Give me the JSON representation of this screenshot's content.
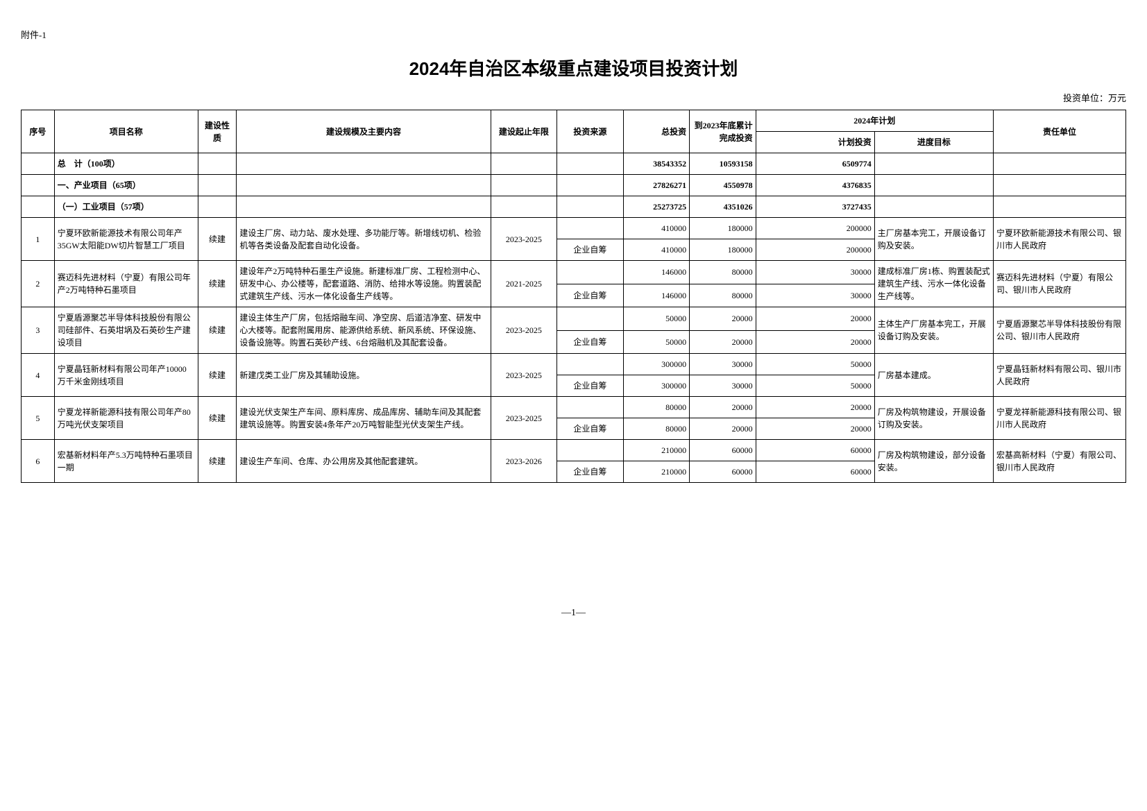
{
  "attachment": "附件-1",
  "title": "2024年自治区本级重点建设项目投资计划",
  "unit": "投资单位：万元",
  "headers": {
    "seq": "序号",
    "name": "项目名称",
    "nature": "建设性质",
    "scale": "建设规模及主要内容",
    "period": "建设起止年限",
    "source": "投资来源",
    "total": "总投资",
    "done2023": "到2023年底累计完成投资",
    "plan2024": "2024年计划",
    "plan_inv": "计划投资",
    "plan_goal": "进度目标",
    "resp": "责任单位"
  },
  "summary": {
    "total_label": "总　计（100项）",
    "total_inv": "38543352",
    "total_2023": "10593158",
    "total_plan": "6509774",
    "cat1_label": "一、产业项目（65项）",
    "cat1_inv": "27826271",
    "cat1_2023": "4550978",
    "cat1_plan": "4376835",
    "sub1_label": "（一）工业项目（57项）",
    "sub1_inv": "25273725",
    "sub1_2023": "4351026",
    "sub1_plan": "3727435"
  },
  "rows": [
    {
      "seq": "1",
      "name": "宁夏环欧新能源技术有限公司年产35GW太阳能DW切片智慧工厂项目",
      "nature": "续建",
      "scale": "建设主厂房、动力站、废水处理、多功能厅等。新增线切机、检验机等各类设备及配套自动化设备。",
      "period": "2023-2025",
      "r1_total": "410000",
      "r1_2023": "180000",
      "r1_plan": "200000",
      "source": "企业自筹",
      "r2_total": "410000",
      "r2_2023": "180000",
      "r2_plan": "200000",
      "goal": "主厂房基本完工，开展设备订购及安装。",
      "resp": "宁夏环欧新能源技术有限公司、银川市人民政府"
    },
    {
      "seq": "2",
      "name": "赛迈科先进材料（宁夏）有限公司年产2万吨特种石墨项目",
      "nature": "续建",
      "scale": "建设年产2万吨特种石墨生产设施。新建标准厂房、工程检测中心、研发中心、办公楼等，配套道路、消防、给排水等设施。购置装配式建筑生产线、污水一体化设备生产线等。",
      "period": "2021-2025",
      "r1_total": "146000",
      "r1_2023": "80000",
      "r1_plan": "30000",
      "source": "企业自筹",
      "r2_total": "146000",
      "r2_2023": "80000",
      "r2_plan": "30000",
      "goal": "建成标准厂房1栋、购置装配式建筑生产线、污水一体化设备生产线等。",
      "resp": "赛迈科先进材料（宁夏）有限公司、银川市人民政府"
    },
    {
      "seq": "3",
      "name": "宁夏盾源聚芯半导体科技股份有限公司硅部件、石英坩埚及石英砂生产建设项目",
      "nature": "续建",
      "scale": "建设主体生产厂房，包括熔融车间、净空房、后道洁净室、研发中心大楼等。配套附属用房、能源供给系统、新风系统、环保设施、设备设施等。购置石英砂产线、6台熔融机及其配套设备。",
      "period": "2023-2025",
      "r1_total": "50000",
      "r1_2023": "20000",
      "r1_plan": "20000",
      "source": "企业自筹",
      "r2_total": "50000",
      "r2_2023": "20000",
      "r2_plan": "20000",
      "goal": "主体生产厂房基本完工，开展设备订购及安装。",
      "resp": "宁夏盾源聚芯半导体科技股份有限公司、银川市人民政府"
    },
    {
      "seq": "4",
      "name": "宁夏晶钰新材料有限公司年产10000万千米金刚线项目",
      "nature": "续建",
      "scale": "新建戊类工业厂房及其辅助设施。",
      "period": "2023-2025",
      "r1_total": "300000",
      "r1_2023": "30000",
      "r1_plan": "50000",
      "source": "企业自筹",
      "r2_total": "300000",
      "r2_2023": "30000",
      "r2_plan": "50000",
      "goal": "厂房基本建成。",
      "resp": "宁夏晶钰新材料有限公司、银川市人民政府"
    },
    {
      "seq": "5",
      "name": "宁夏龙祥新能源科技有限公司年产80万吨光伏支架项目",
      "nature": "续建",
      "scale": "建设光伏支架生产车间、原料库房、成品库房、辅助车间及其配套建筑设施等。购置安装4条年产20万吨智能型光伏支架生产线。",
      "period": "2023-2025",
      "r1_total": "80000",
      "r1_2023": "20000",
      "r1_plan": "20000",
      "source": "企业自筹",
      "r2_total": "80000",
      "r2_2023": "20000",
      "r2_plan": "20000",
      "goal": "厂房及构筑物建设，开展设备订购及安装。",
      "resp": "宁夏龙祥新能源科技有限公司、银川市人民政府"
    },
    {
      "seq": "6",
      "name": "宏基新材料年产5.3万吨特种石墨项目一期",
      "nature": "续建",
      "scale": "建设生产车间、仓库、办公用房及其他配套建筑。",
      "period": "2023-2026",
      "r1_total": "210000",
      "r1_2023": "60000",
      "r1_plan": "60000",
      "source": "企业自筹",
      "r2_total": "210000",
      "r2_2023": "60000",
      "r2_plan": "60000",
      "goal": "厂房及构筑物建设，部分设备安装。",
      "resp": "宏基高新材料（宁夏）有限公司、银川市人民政府"
    }
  ],
  "page_num": "—1—"
}
